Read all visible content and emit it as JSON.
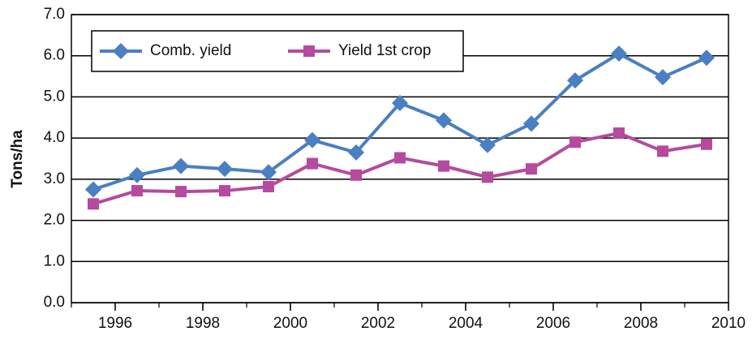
{
  "chart_data": {
    "type": "line",
    "y_label": "Tons/ha",
    "x": [
      1995.5,
      1996.5,
      1997.5,
      1998.5,
      1999.5,
      2000.5,
      2001.5,
      2002.5,
      2003.5,
      2004.5,
      2005.5,
      2006.5,
      2007.5,
      2008.5,
      2009.5
    ],
    "series": [
      {
        "name": "Comb. yield",
        "color": "#4a7fc1",
        "marker": "diamond",
        "values": [
          2.75,
          3.1,
          3.32,
          3.25,
          3.17,
          3.95,
          3.65,
          4.85,
          4.43,
          3.83,
          4.35,
          5.4,
          6.05,
          5.48,
          5.95
        ]
      },
      {
        "name": "Yield 1st crop",
        "color": "#b54a9e",
        "marker": "square",
        "values": [
          2.4,
          2.72,
          2.7,
          2.72,
          2.82,
          3.38,
          3.1,
          3.52,
          3.32,
          3.05,
          3.25,
          3.9,
          4.12,
          3.68,
          3.85
        ]
      }
    ],
    "xlim": [
      1995,
      2010
    ],
    "xticks": [
      1996,
      1998,
      2000,
      2002,
      2004,
      2006,
      2008,
      2010
    ],
    "ylim": [
      0,
      7
    ],
    "yticks": [
      {
        "value": 0,
        "label": "0.0"
      },
      {
        "value": 1,
        "label": "1.0"
      },
      {
        "value": 2,
        "label": "2.0"
      },
      {
        "value": 3,
        "label": "3.0"
      },
      {
        "value": 4,
        "label": "4.0"
      },
      {
        "value": 5,
        "label": "5.0"
      },
      {
        "value": 6,
        "label": "6.0"
      },
      {
        "value": 7,
        "label": "7.0"
      }
    ],
    "grid": true,
    "legend": "top-left"
  }
}
